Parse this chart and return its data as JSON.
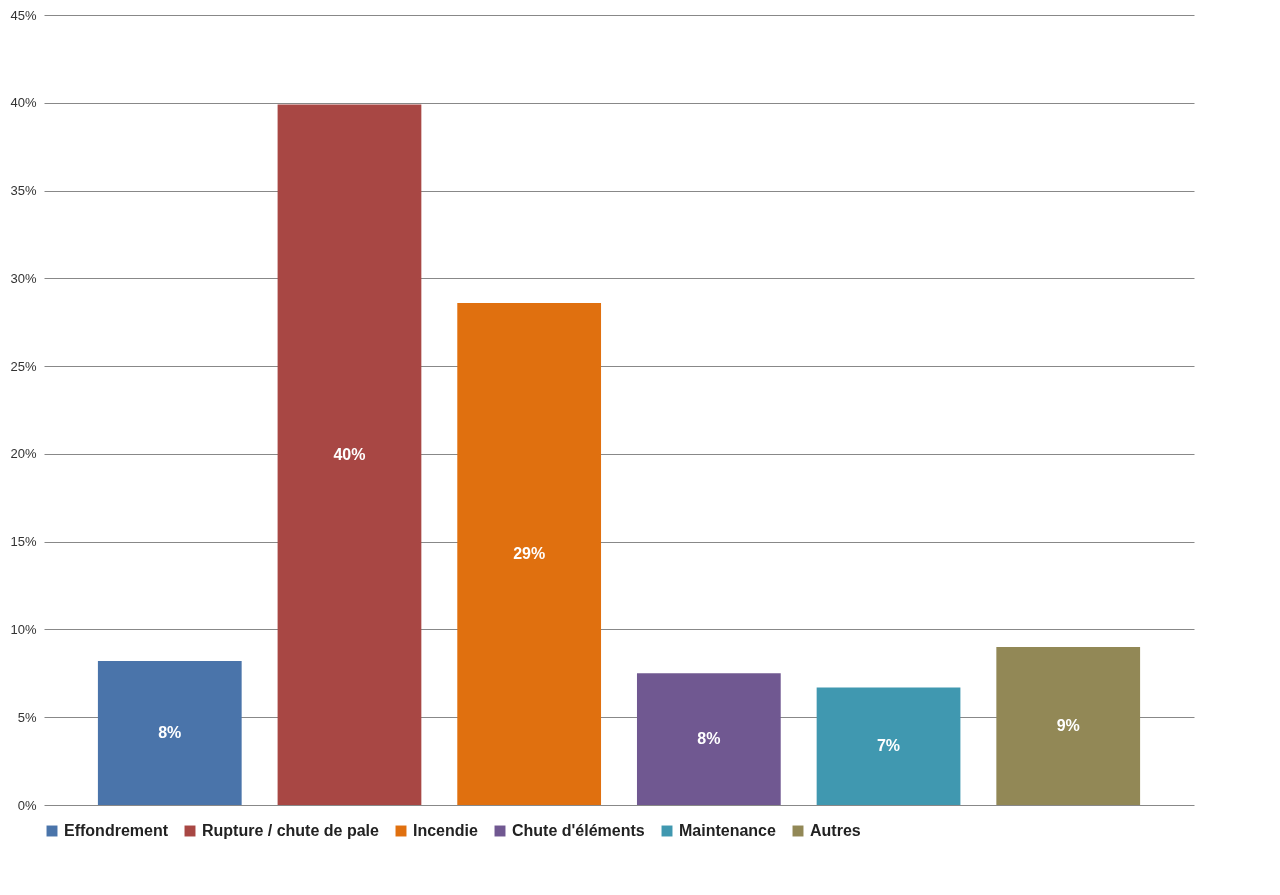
{
  "chart_data": {
    "type": "bar",
    "categories": [
      null,
      null,
      null,
      null,
      null,
      null
    ],
    "series": [
      {
        "name": "Effondrement",
        "color": "#4a74aa",
        "values": [
          8.2,
          null,
          null,
          null,
          null,
          null
        ],
        "value_labels": [
          "8%",
          null,
          null,
          null,
          null,
          null
        ]
      },
      {
        "name": "Rupture / chute de pale",
        "color": "#a84744",
        "values": [
          null,
          39.9,
          null,
          null,
          null,
          null
        ],
        "value_labels": [
          null,
          "40%",
          null,
          null,
          null,
          null
        ]
      },
      {
        "name": "Incendie",
        "color": "#e0700f",
        "values": [
          null,
          null,
          28.6,
          null,
          null,
          null
        ],
        "value_labels": [
          null,
          null,
          "29%",
          null,
          null,
          null
        ]
      },
      {
        "name": "Chute d'éléments",
        "color": "#705891",
        "values": [
          null,
          null,
          null,
          7.5,
          null,
          null
        ],
        "value_labels": [
          null,
          null,
          null,
          "8%",
          null,
          null
        ]
      },
      {
        "name": "Maintenance",
        "color": "#4098b0",
        "values": [
          null,
          null,
          null,
          null,
          6.7,
          null
        ],
        "value_labels": [
          null,
          null,
          null,
          null,
          "7%",
          null
        ]
      },
      {
        "name": "Autres",
        "color": "#928856",
        "values": [
          null,
          null,
          null,
          null,
          null,
          9.0
        ],
        "value_labels": [
          null,
          null,
          null,
          null,
          null,
          "9%"
        ]
      }
    ],
    "ylim": [
      0,
      45
    ],
    "yticks": [
      {
        "value": 0,
        "label": "0%"
      },
      {
        "value": 5,
        "label": "5%"
      },
      {
        "value": 10,
        "label": "10%"
      },
      {
        "value": 15,
        "label": "15%"
      },
      {
        "value": 20,
        "label": "20%"
      },
      {
        "value": 25,
        "label": "25%"
      },
      {
        "value": 30,
        "label": "30%"
      },
      {
        "value": 35,
        "label": "35%"
      },
      {
        "value": 40,
        "label": "40%"
      },
      {
        "value": 45,
        "label": "45%"
      }
    ],
    "grid": "y",
    "legend": "bottom"
  }
}
